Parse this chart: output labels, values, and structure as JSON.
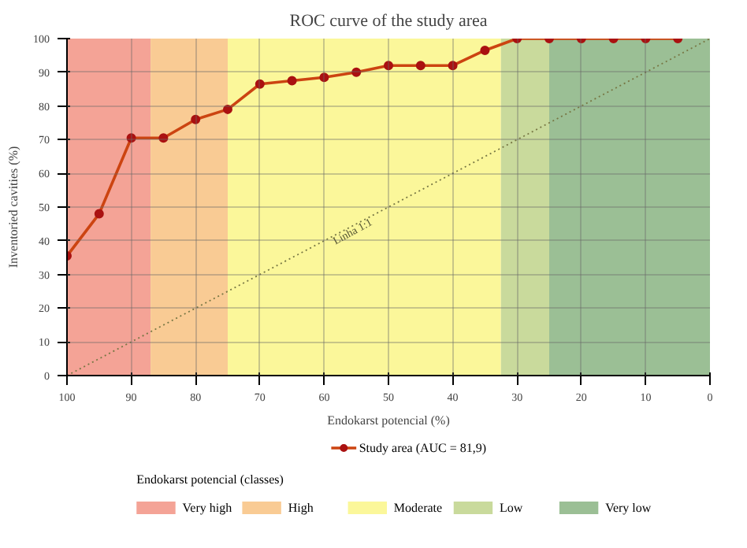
{
  "chart_data": {
    "type": "line",
    "title": "ROC curve of the study area",
    "xlabel": "Endokarst potencial (%)",
    "ylabel": "Inventoried cavities (%)",
    "xlim": [
      100,
      0
    ],
    "xticks": [
      100,
      90,
      80,
      70,
      60,
      50,
      40,
      30,
      20,
      10,
      0
    ],
    "ylim": [
      0,
      100
    ],
    "yticks": [
      0,
      10,
      20,
      30,
      40,
      50,
      60,
      70,
      80,
      90,
      100
    ],
    "grid": true,
    "legend": "bottom",
    "legend_title": "Endokarst potencial (classes)",
    "series": [
      {
        "name": "Study area (AUC = 81,9)",
        "color": "#cc4411",
        "marker": "circle",
        "line_style": "solid",
        "x": [
          100,
          95,
          90,
          85,
          80,
          75,
          70,
          65,
          60,
          55,
          50,
          45,
          40,
          35,
          30,
          25,
          20,
          15,
          10,
          5
        ],
        "values": [
          35.5,
          48,
          70.5,
          70.5,
          76,
          79,
          86.5,
          87.5,
          88.5,
          90,
          92,
          92,
          92,
          96.5,
          100,
          100,
          100,
          100,
          100,
          100
        ]
      },
      {
        "name": "Linha 1:1",
        "color": "#777744",
        "marker": "none",
        "line_style": "dotted",
        "x": [
          100,
          0
        ],
        "values": [
          0,
          100
        ]
      }
    ],
    "bands": [
      {
        "axis": "x",
        "from": 100,
        "to": 87,
        "label": "Very high",
        "color": "#f4a396"
      },
      {
        "axis": "x",
        "from": 87,
        "to": 75,
        "label": "High",
        "color": "#f9cb94"
      },
      {
        "axis": "x",
        "from": 75,
        "to": 32.5,
        "label": "Moderate",
        "color": "#fbf79a"
      },
      {
        "axis": "x",
        "from": 32.5,
        "to": 25,
        "label": "Low",
        "color": "#c9da9c"
      },
      {
        "axis": "x",
        "from": 25,
        "to": 0,
        "label": "Very low",
        "color": "#9bbf95"
      }
    ]
  }
}
